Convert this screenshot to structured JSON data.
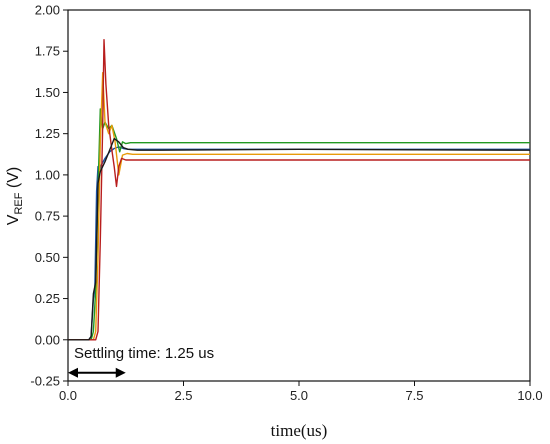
{
  "chart_data": {
    "type": "line",
    "xlabel": "time(us)",
    "ylabel_main": "V",
    "ylabel_sub": "REF",
    "ylabel_unit": " (V)",
    "xlim": [
      0,
      10
    ],
    "ylim": [
      -0.25,
      2.0
    ],
    "x_ticks": [
      0,
      2.5,
      5,
      7.5,
      10
    ],
    "x_tick_labels": [
      "0.0",
      "2.5",
      "5.0",
      "7.5",
      "10.0"
    ],
    "y_ticks": [
      -0.25,
      0,
      0.25,
      0.5,
      0.75,
      1.0,
      1.25,
      1.5,
      1.75,
      2.0
    ],
    "y_tick_labels": [
      "-0.25",
      "0.00",
      "0.25",
      "0.50",
      "0.75",
      "1.00",
      "1.25",
      "1.50",
      "1.75",
      "2.00"
    ],
    "grid": false,
    "annotation": {
      "text": "Settling time: 1.25 us",
      "arrow_from_x": 0,
      "arrow_to_x": 1.25,
      "arrow_y": -0.2
    },
    "series": [
      {
        "color": "#1a4fa0",
        "x": [
          0,
          0.45,
          0.5,
          0.55,
          0.58,
          0.62,
          0.65,
          0.68,
          0.72,
          0.8,
          0.9,
          1.0,
          1.1,
          1.2,
          1.3,
          1.5,
          10
        ],
        "y": [
          0,
          0,
          0.02,
          0.25,
          0.3,
          0.9,
          1.05,
          1.02,
          1.06,
          1.1,
          1.14,
          1.16,
          1.17,
          1.16,
          1.155,
          1.155,
          1.155
        ]
      },
      {
        "color": "#229922",
        "x": [
          0,
          0.5,
          0.55,
          0.6,
          0.65,
          0.7,
          0.75,
          0.8,
          0.88,
          0.95,
          1.05,
          1.12,
          1.18,
          1.25,
          1.35,
          10
        ],
        "y": [
          0,
          0,
          0.05,
          0.3,
          0.9,
          1.4,
          1.28,
          1.32,
          1.28,
          1.3,
          1.22,
          1.14,
          1.2,
          1.19,
          1.195,
          1.195
        ]
      },
      {
        "color": "#e89a0a",
        "x": [
          0,
          0.55,
          0.6,
          0.65,
          0.7,
          0.75,
          0.8,
          0.88,
          0.95,
          1.02,
          1.1,
          1.18,
          1.28,
          1.4,
          10
        ],
        "y": [
          0,
          0,
          0.05,
          0.5,
          1.2,
          1.62,
          1.32,
          1.25,
          1.3,
          1.2,
          1.0,
          1.12,
          1.13,
          1.125,
          1.125
        ]
      },
      {
        "color": "#b81e1e",
        "x": [
          0,
          0.6,
          0.65,
          0.7,
          0.75,
          0.78,
          0.82,
          0.88,
          0.95,
          1.0,
          1.05,
          1.1,
          1.16,
          1.25,
          1.4,
          10
        ],
        "y": [
          0,
          0,
          0.05,
          0.6,
          1.3,
          1.82,
          1.55,
          1.3,
          1.15,
          1.05,
          0.93,
          1.05,
          1.1,
          1.09,
          1.09,
          1.09
        ]
      },
      {
        "color": "#1a1a1a",
        "x": [
          0,
          0.45,
          0.5,
          0.55,
          0.6,
          0.65,
          0.7,
          0.8,
          0.9,
          1.0,
          1.1,
          1.2,
          1.3,
          1.5,
          2.0,
          5.0,
          7.5,
          10
        ],
        "y": [
          0,
          0,
          0.02,
          0.28,
          0.35,
          0.95,
          1.02,
          1.08,
          1.15,
          1.22,
          1.2,
          1.165,
          1.155,
          1.15,
          1.15,
          1.155,
          1.152,
          1.15
        ]
      }
    ]
  }
}
